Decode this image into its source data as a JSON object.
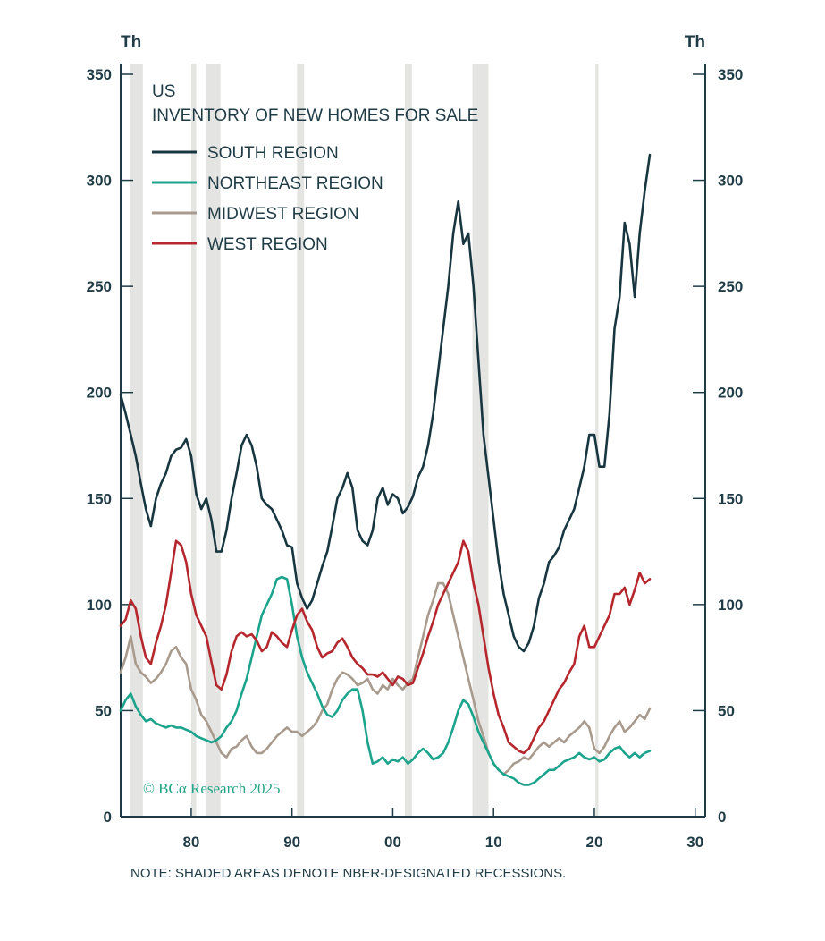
{
  "chart_data": {
    "type": "line",
    "country": "US",
    "title": "INVENTORY OF NEW HOMES FOR SALE",
    "left_unit": "Th",
    "right_unit": "Th",
    "xlim": [
      1973,
      2031
    ],
    "ylim": [
      0,
      350
    ],
    "y_ticks": [
      0,
      50,
      100,
      150,
      200,
      250,
      300,
      350
    ],
    "y_tick_labels": [
      "0",
      "50",
      "100",
      "150",
      "200",
      "250",
      "300",
      "350"
    ],
    "x_ticks": [
      1980,
      1990,
      2000,
      2010,
      2020,
      2030
    ],
    "x_tick_labels": [
      "80",
      "90",
      "00",
      "10",
      "20",
      "30"
    ],
    "recessions": [
      [
        1973.9,
        1975.2
      ],
      [
        1980.0,
        1980.5
      ],
      [
        1981.5,
        1982.9
      ],
      [
        1990.5,
        1991.2
      ],
      [
        2001.2,
        2001.9
      ],
      [
        2007.9,
        2009.5
      ],
      [
        2020.1,
        2020.4
      ]
    ],
    "series": [
      {
        "name": "SOUTH REGION",
        "color": "#173640",
        "x": [
          1973.0,
          1973.5,
          1974.0,
          1974.5,
          1975.0,
          1975.5,
          1976.0,
          1976.5,
          1977.0,
          1977.5,
          1978.0,
          1978.5,
          1979.0,
          1979.5,
          1980.0,
          1980.5,
          1981.0,
          1981.5,
          1982.0,
          1982.5,
          1983.0,
          1983.5,
          1984.0,
          1984.5,
          1985.0,
          1985.5,
          1986.0,
          1986.5,
          1987.0,
          1987.5,
          1988.0,
          1988.5,
          1989.0,
          1989.5,
          1990.0,
          1990.5,
          1991.0,
          1991.5,
          1992.0,
          1992.5,
          1993.0,
          1993.5,
          1994.0,
          1994.5,
          1995.0,
          1995.5,
          1996.0,
          1996.5,
          1997.0,
          1997.5,
          1998.0,
          1998.5,
          1999.0,
          1999.5,
          2000.0,
          2000.5,
          2001.0,
          2001.5,
          2002.0,
          2002.5,
          2003.0,
          2003.5,
          2004.0,
          2004.5,
          2005.0,
          2005.5,
          2006.0,
          2006.5,
          2007.0,
          2007.5,
          2008.0,
          2008.5,
          2009.0,
          2009.5,
          2010.0,
          2010.5,
          2011.0,
          2011.5,
          2012.0,
          2012.5,
          2013.0,
          2013.5,
          2014.0,
          2014.5,
          2015.0,
          2015.5,
          2016.0,
          2016.5,
          2017.0,
          2017.5,
          2018.0,
          2018.5,
          2019.0,
          2019.5,
          2020.0,
          2020.5,
          2021.0,
          2021.5,
          2022.0,
          2022.5,
          2023.0,
          2023.5,
          2024.0,
          2024.5,
          2025.0,
          2025.5
        ],
        "values": [
          199,
          190,
          180,
          170,
          157,
          145,
          137,
          150,
          157,
          162,
          170,
          173,
          174,
          178,
          170,
          152,
          145,
          150,
          140,
          125,
          125,
          135,
          150,
          162,
          175,
          180,
          175,
          165,
          150,
          147,
          145,
          140,
          135,
          128,
          127,
          110,
          103,
          98,
          102,
          110,
          118,
          125,
          137,
          150,
          155,
          162,
          155,
          135,
          130,
          128,
          135,
          150,
          155,
          147,
          152,
          150,
          143,
          146,
          151,
          160,
          165,
          175,
          190,
          210,
          230,
          250,
          275,
          290,
          270,
          275,
          250,
          215,
          180,
          160,
          140,
          120,
          105,
          95,
          85,
          80,
          78,
          82,
          90,
          103,
          110,
          120,
          123,
          127,
          135,
          140,
          145,
          155,
          165,
          180,
          180,
          165,
          165,
          190,
          230,
          245,
          280,
          270,
          245,
          275,
          295,
          312
        ]
      },
      {
        "name": "NORTHEAST REGION",
        "color": "#1ba38c",
        "x": [
          1973.0,
          1973.5,
          1974.0,
          1974.5,
          1975.0,
          1975.5,
          1976.0,
          1976.5,
          1977.0,
          1977.5,
          1978.0,
          1978.5,
          1979.0,
          1979.5,
          1980.0,
          1980.5,
          1981.0,
          1981.5,
          1982.0,
          1982.5,
          1983.0,
          1983.5,
          1984.0,
          1984.5,
          1985.0,
          1985.5,
          1986.0,
          1986.5,
          1987.0,
          1987.5,
          1988.0,
          1988.5,
          1989.0,
          1989.5,
          1990.0,
          1990.5,
          1991.0,
          1991.5,
          1992.0,
          1992.5,
          1993.0,
          1993.5,
          1994.0,
          1994.5,
          1995.0,
          1995.5,
          1996.0,
          1996.5,
          1997.0,
          1997.5,
          1998.0,
          1998.5,
          1999.0,
          1999.5,
          2000.0,
          2000.5,
          2001.0,
          2001.5,
          2002.0,
          2002.5,
          2003.0,
          2003.5,
          2004.0,
          2004.5,
          2005.0,
          2005.5,
          2006.0,
          2006.5,
          2007.0,
          2007.5,
          2008.0,
          2008.5,
          2009.0,
          2009.5,
          2010.0,
          2010.5,
          2011.0,
          2011.5,
          2012.0,
          2012.5,
          2013.0,
          2013.5,
          2014.0,
          2014.5,
          2015.0,
          2015.5,
          2016.0,
          2016.5,
          2017.0,
          2017.5,
          2018.0,
          2018.5,
          2019.0,
          2019.5,
          2020.0,
          2020.5,
          2021.0,
          2021.5,
          2022.0,
          2022.5,
          2023.0,
          2023.5,
          2024.0,
          2024.5,
          2025.0,
          2025.5
        ],
        "values": [
          50,
          55,
          58,
          52,
          48,
          45,
          46,
          44,
          43,
          42,
          43,
          42,
          42,
          41,
          40,
          38,
          37,
          36,
          35,
          36,
          38,
          42,
          45,
          50,
          58,
          65,
          75,
          85,
          95,
          100,
          105,
          112,
          113,
          112,
          100,
          85,
          75,
          68,
          63,
          58,
          52,
          48,
          47,
          50,
          55,
          58,
          60,
          60,
          50,
          35,
          25,
          26,
          28,
          25,
          27,
          26,
          28,
          25,
          27,
          30,
          32,
          30,
          27,
          28,
          30,
          35,
          42,
          50,
          55,
          53,
          47,
          40,
          35,
          30,
          25,
          22,
          20,
          19,
          18,
          16,
          15,
          15,
          16,
          18,
          20,
          22,
          22,
          24,
          26,
          27,
          28,
          30,
          28,
          27,
          28,
          26,
          27,
          30,
          32,
          33,
          30,
          28,
          30,
          28,
          30,
          31
        ]
      },
      {
        "name": "MIDWEST REGION",
        "color": "#a89a8c",
        "x": [
          1973.0,
          1973.5,
          1974.0,
          1974.5,
          1975.0,
          1975.5,
          1976.0,
          1976.5,
          1977.0,
          1977.5,
          1978.0,
          1978.5,
          1979.0,
          1979.5,
          1980.0,
          1980.5,
          1981.0,
          1981.5,
          1982.0,
          1982.5,
          1983.0,
          1983.5,
          1984.0,
          1984.5,
          1985.0,
          1985.5,
          1986.0,
          1986.5,
          1987.0,
          1987.5,
          1988.0,
          1988.5,
          1989.0,
          1989.5,
          1990.0,
          1990.5,
          1991.0,
          1991.5,
          1992.0,
          1992.5,
          1993.0,
          1993.5,
          1994.0,
          1994.5,
          1995.0,
          1995.5,
          1996.0,
          1996.5,
          1997.0,
          1997.5,
          1998.0,
          1998.5,
          1999.0,
          1999.5,
          2000.0,
          2000.5,
          2001.0,
          2001.5,
          2002.0,
          2002.5,
          2003.0,
          2003.5,
          2004.0,
          2004.5,
          2005.0,
          2005.5,
          2006.0,
          2006.5,
          2007.0,
          2007.5,
          2008.0,
          2008.5,
          2009.0,
          2009.5,
          2010.0,
          2010.5,
          2011.0,
          2011.5,
          2012.0,
          2012.5,
          2013.0,
          2013.5,
          2014.0,
          2014.5,
          2015.0,
          2015.5,
          2016.0,
          2016.5,
          2017.0,
          2017.5,
          2018.0,
          2018.5,
          2019.0,
          2019.5,
          2020.0,
          2020.5,
          2021.0,
          2021.5,
          2022.0,
          2022.5,
          2023.0,
          2023.5,
          2024.0,
          2024.5,
          2025.0,
          2025.5
        ],
        "values": [
          68,
          75,
          85,
          72,
          68,
          66,
          63,
          65,
          68,
          72,
          78,
          80,
          75,
          72,
          60,
          55,
          48,
          45,
          40,
          35,
          30,
          28,
          32,
          33,
          36,
          38,
          33,
          30,
          30,
          32,
          35,
          38,
          40,
          42,
          40,
          40,
          38,
          40,
          42,
          45,
          50,
          53,
          60,
          65,
          68,
          67,
          65,
          62,
          63,
          65,
          60,
          58,
          62,
          60,
          65,
          62,
          60,
          63,
          65,
          75,
          85,
          95,
          102,
          110,
          110,
          105,
          95,
          85,
          75,
          65,
          55,
          45,
          38,
          30,
          25,
          22,
          20,
          22,
          25,
          26,
          28,
          27,
          30,
          33,
          35,
          33,
          35,
          37,
          35,
          38,
          40,
          42,
          45,
          42,
          32,
          30,
          33,
          38,
          42,
          45,
          40,
          42,
          45,
          48,
          46,
          51
        ]
      },
      {
        "name": "WEST REGION",
        "color": "#b5272d",
        "x": [
          1973.0,
          1973.5,
          1974.0,
          1974.5,
          1975.0,
          1975.5,
          1976.0,
          1976.5,
          1977.0,
          1977.5,
          1978.0,
          1978.5,
          1979.0,
          1979.5,
          1980.0,
          1980.5,
          1981.0,
          1981.5,
          1982.0,
          1982.5,
          1983.0,
          1983.5,
          1984.0,
          1984.5,
          1985.0,
          1985.5,
          1986.0,
          1986.5,
          1987.0,
          1987.5,
          1988.0,
          1988.5,
          1989.0,
          1989.5,
          1990.0,
          1990.5,
          1991.0,
          1991.5,
          1992.0,
          1992.5,
          1993.0,
          1993.5,
          1994.0,
          1994.5,
          1995.0,
          1995.5,
          1996.0,
          1996.5,
          1997.0,
          1997.5,
          1998.0,
          1998.5,
          1999.0,
          1999.5,
          2000.0,
          2000.5,
          2001.0,
          2001.5,
          2002.0,
          2002.5,
          2003.0,
          2003.5,
          2004.0,
          2004.5,
          2005.0,
          2005.5,
          2006.0,
          2006.5,
          2007.0,
          2007.5,
          2008.0,
          2008.5,
          2009.0,
          2009.5,
          2010.0,
          2010.5,
          2011.0,
          2011.5,
          2012.0,
          2012.5,
          2013.0,
          2013.5,
          2014.0,
          2014.5,
          2015.0,
          2015.5,
          2016.0,
          2016.5,
          2017.0,
          2017.5,
          2018.0,
          2018.5,
          2019.0,
          2019.5,
          2020.0,
          2020.5,
          2021.0,
          2021.5,
          2022.0,
          2022.5,
          2023.0,
          2023.5,
          2024.0,
          2024.5,
          2025.0,
          2025.5
        ],
        "values": [
          90,
          93,
          102,
          98,
          85,
          75,
          72,
          82,
          90,
          100,
          115,
          130,
          128,
          120,
          105,
          95,
          90,
          85,
          73,
          62,
          60,
          67,
          78,
          85,
          87,
          85,
          86,
          83,
          78,
          80,
          87,
          85,
          82,
          80,
          88,
          95,
          98,
          92,
          88,
          80,
          75,
          77,
          78,
          82,
          84,
          80,
          75,
          72,
          70,
          67,
          67,
          66,
          68,
          65,
          62,
          66,
          65,
          62,
          63,
          70,
          77,
          85,
          92,
          100,
          105,
          110,
          115,
          120,
          130,
          125,
          110,
          100,
          85,
          70,
          58,
          48,
          42,
          35,
          33,
          31,
          30,
          32,
          37,
          42,
          45,
          50,
          55,
          60,
          63,
          68,
          72,
          85,
          90,
          80,
          80,
          85,
          90,
          95,
          105,
          105,
          108,
          100,
          107,
          115,
          110,
          112
        ]
      }
    ],
    "legend_position": "top-left"
  },
  "note": "NOTE: SHADED AREAS DENOTE NBER-DESIGNATED RECESSIONS.",
  "watermark": "© BCα Research 2025"
}
